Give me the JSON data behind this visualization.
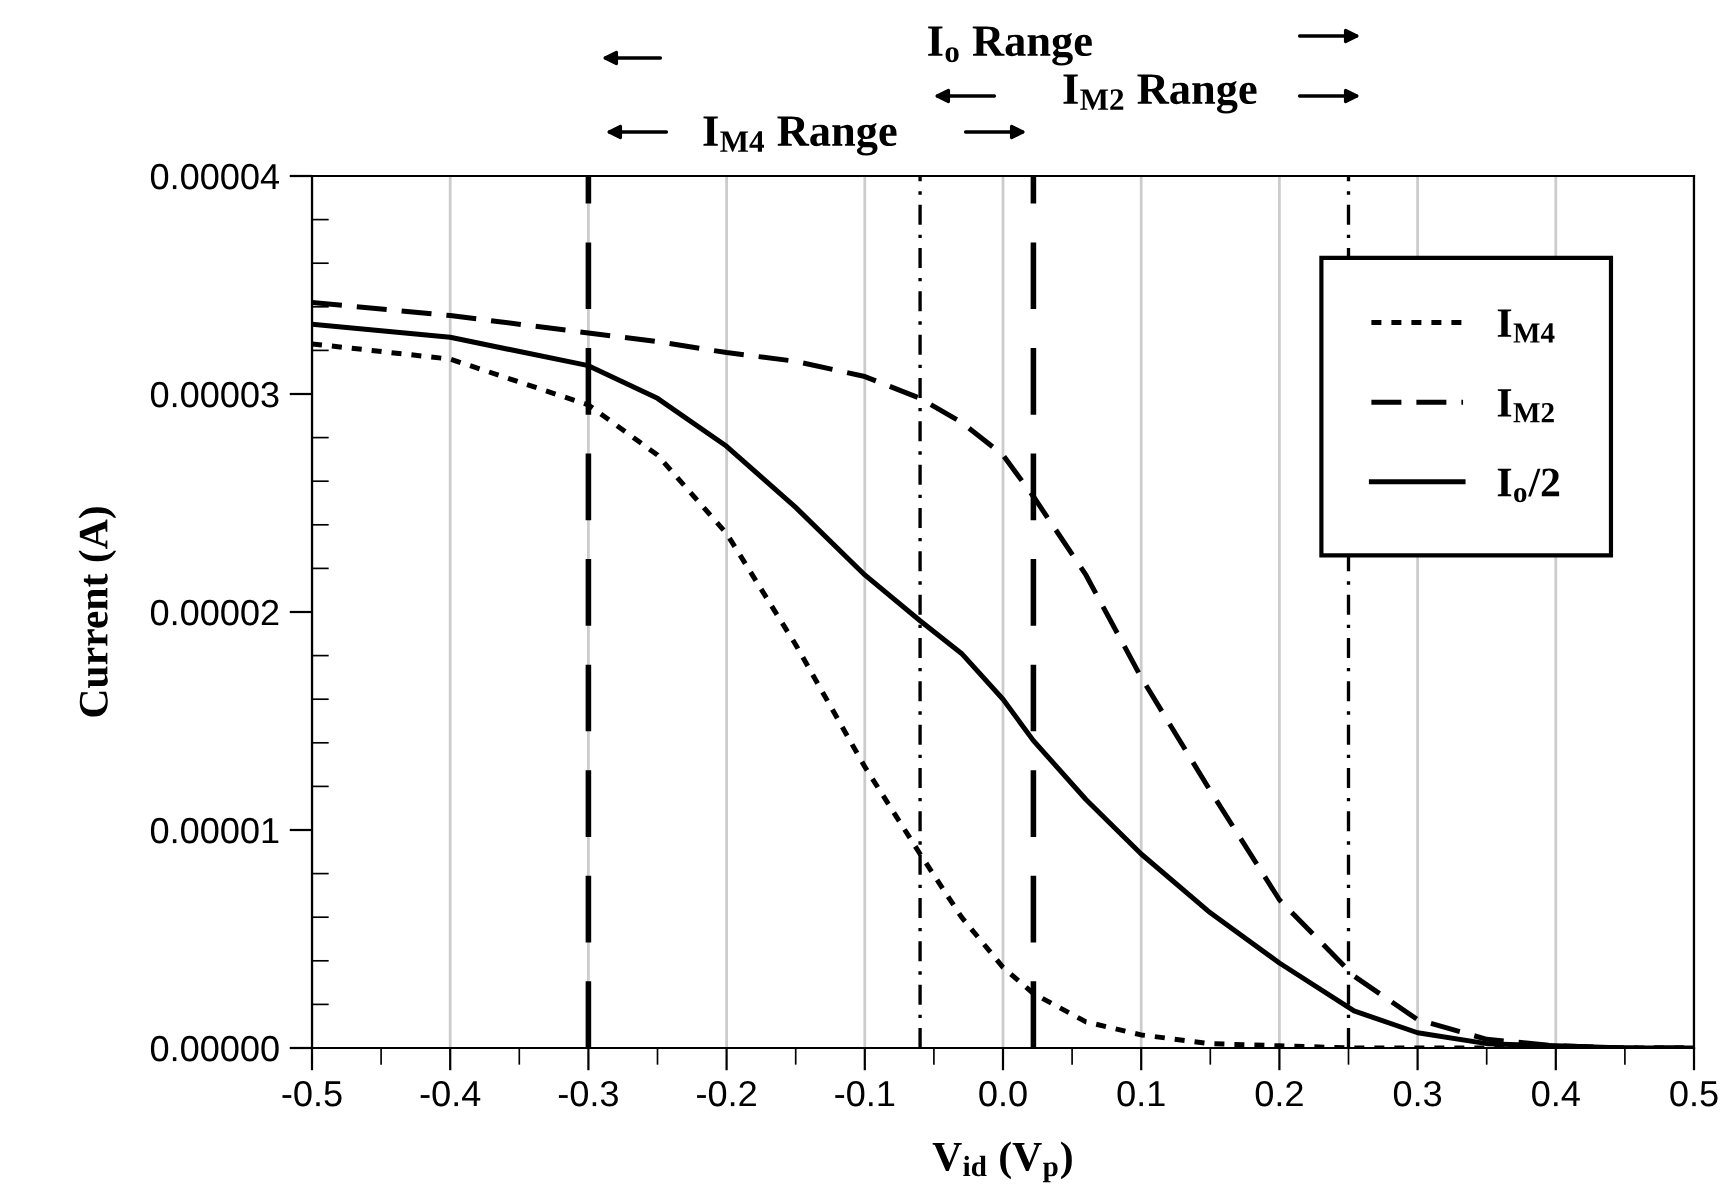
{
  "chart_data": {
    "type": "line",
    "xlabel": "V$_{id}$ (V$_{p}$)",
    "ylabel": "Current (A)",
    "x": [
      -0.5,
      -0.4,
      -0.3,
      -0.25,
      -0.2,
      -0.15,
      -0.1,
      -0.06,
      -0.03,
      0.0,
      0.022,
      0.06,
      0.1,
      0.15,
      0.2,
      0.254,
      0.3,
      0.35,
      0.4,
      0.45,
      0.5
    ],
    "series": [
      {
        "name": "I$_{M4}$",
        "color": "#000000",
        "line_style": "dotted",
        "values": [
          3.23e-05,
          3.16e-05,
          2.95e-05,
          2.72e-05,
          2.36e-05,
          1.85e-05,
          1.29e-05,
          8.9e-06,
          6e-06,
          3.7e-06,
          2.5e-06,
          1.2e-06,
          6e-07,
          2e-07,
          1e-07,
          0,
          0,
          0,
          0,
          0,
          0
        ]
      },
      {
        "name": "I$_{M2}$",
        "color": "#000000",
        "line_style": "dashed",
        "values": [
          3.42e-05,
          3.36e-05,
          3.28e-05,
          3.24e-05,
          3.19e-05,
          3.15e-05,
          3.08e-05,
          2.98e-05,
          2.87e-05,
          2.72e-05,
          2.53e-05,
          2.17e-05,
          1.7e-05,
          1.18e-05,
          6.8e-06,
          3.3e-06,
          1.3e-06,
          4e-07,
          1e-07,
          0,
          0
        ]
      },
      {
        "name": "I$_{o}$/2",
        "color": "#000000",
        "line_style": "solid",
        "values": [
          3.32e-05,
          3.26e-05,
          3.13e-05,
          2.98e-05,
          2.76e-05,
          2.48e-05,
          2.17e-05,
          1.96e-05,
          1.81e-05,
          1.6e-05,
          1.41e-05,
          1.14e-05,
          8.9e-06,
          6.2e-06,
          3.9e-06,
          1.7e-06,
          7e-07,
          2e-07,
          1e-07,
          0,
          0
        ]
      }
    ],
    "xlim": [
      -0.5,
      0.5
    ],
    "xticks": [
      -0.5,
      -0.4,
      -0.3,
      -0.2,
      -0.1,
      {
        "value": 0,
        "label": "0.0"
      },
      0.1,
      0.2,
      0.3,
      0.4,
      0.5
    ],
    "ylim": [
      0,
      4e-05
    ],
    "yticks": [
      {
        "value": 0,
        "label": "0.00000"
      },
      {
        "value": 1e-05,
        "label": "0.00001"
      },
      {
        "value": 2e-05,
        "label": "0.00002"
      },
      {
        "value": 3e-05,
        "label": "0.00003"
      },
      {
        "value": 4e-05,
        "label": "0.00004"
      }
    ],
    "ref_lines": [
      {
        "axis": "x",
        "value": -0.3,
        "color": "#000000",
        "line_style": "dashed"
      },
      {
        "axis": "x",
        "value": -0.06,
        "color": "#000000",
        "line_style": "dashdot"
      },
      {
        "axis": "x",
        "value": 0.022,
        "color": "#000000",
        "line_style": "dashed"
      },
      {
        "axis": "x",
        "value": 0.25,
        "color": "#000000",
        "line_style": "dashdot"
      }
    ],
    "annotations": [
      "I$_{o}$ Range",
      "I$_{M2}$ Range",
      "I$_{M4}$ Range"
    ],
    "grid": "x",
    "legend": "top right",
    "marker": "none"
  }
}
